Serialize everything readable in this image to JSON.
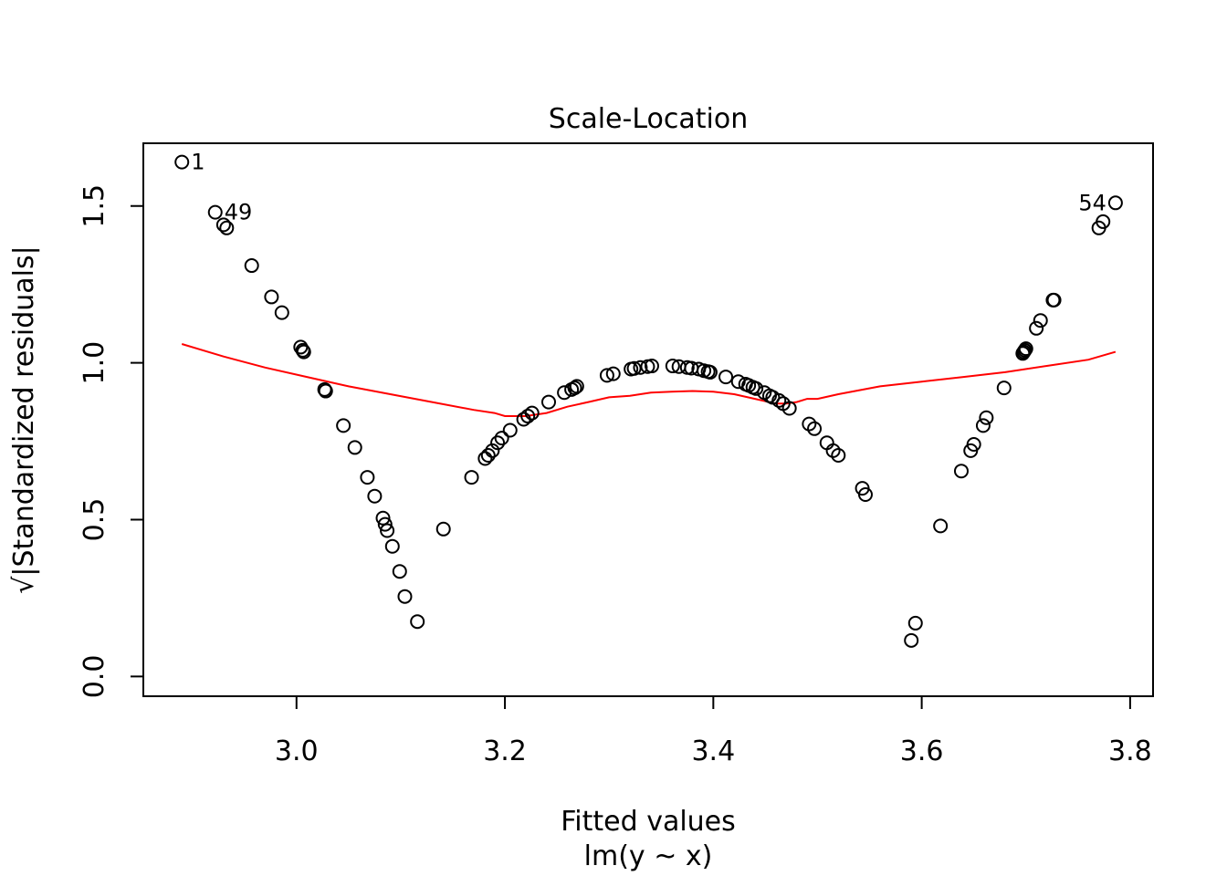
{
  "chart_data": {
    "type": "scatter",
    "title": "Scale-Location",
    "xlabel": "Fitted values",
    "sublabel": "lm(y ~ x)",
    "ylabel": "√|Standardized residuals|",
    "xlim": [
      2.853,
      3.822
    ],
    "ylim": [
      -0.063,
      1.7
    ],
    "xticks": [
      3.0,
      3.2,
      3.4,
      3.6,
      3.8
    ],
    "xtick_labels": [
      "3.0",
      "3.2",
      "3.4",
      "3.6",
      "3.8"
    ],
    "yticks": [
      0.0,
      0.5,
      1.0,
      1.5
    ],
    "ytick_labels": [
      "0.0",
      "0.5",
      "1.0",
      "1.5"
    ],
    "grid": false,
    "points": {
      "x": [
        2.89,
        2.922,
        2.93,
        2.933,
        2.957,
        2.976,
        2.986,
        3.004,
        3.006,
        3.007,
        3.027,
        3.028,
        3.045,
        3.056,
        3.068,
        3.075,
        3.083,
        3.085,
        3.087,
        3.092,
        3.099,
        3.104,
        3.116,
        3.141,
        3.168,
        3.181,
        3.184,
        3.188,
        3.193,
        3.197,
        3.205,
        3.218,
        3.222,
        3.226,
        3.242,
        3.257,
        3.264,
        3.267,
        3.269,
        3.298,
        3.304,
        3.321,
        3.324,
        3.33,
        3.337,
        3.341,
        3.361,
        3.367,
        3.375,
        3.379,
        3.386,
        3.391,
        3.395,
        3.397,
        3.412,
        3.424,
        3.431,
        3.434,
        3.438,
        3.441,
        3.449,
        3.454,
        3.457,
        3.463,
        3.467,
        3.473,
        3.492,
        3.497,
        3.509,
        3.515,
        3.52,
        3.543,
        3.546,
        3.59,
        3.594,
        3.618,
        3.638,
        3.647,
        3.65,
        3.659,
        3.662,
        3.679,
        3.697,
        3.698,
        3.699,
        3.7,
        3.71,
        3.714,
        3.726,
        3.727,
        3.77,
        3.774,
        3.786
      ],
      "y": [
        1.64,
        1.48,
        1.44,
        1.43,
        1.31,
        1.21,
        1.16,
        1.05,
        1.04,
        1.035,
        0.915,
        0.91,
        0.8,
        0.73,
        0.635,
        0.575,
        0.505,
        0.485,
        0.465,
        0.415,
        0.335,
        0.255,
        0.175,
        0.47,
        0.635,
        0.695,
        0.705,
        0.72,
        0.745,
        0.76,
        0.785,
        0.82,
        0.83,
        0.84,
        0.875,
        0.905,
        0.915,
        0.92,
        0.925,
        0.96,
        0.965,
        0.98,
        0.982,
        0.985,
        0.988,
        0.99,
        0.99,
        0.988,
        0.985,
        0.983,
        0.98,
        0.975,
        0.972,
        0.97,
        0.955,
        0.94,
        0.932,
        0.928,
        0.922,
        0.918,
        0.905,
        0.895,
        0.89,
        0.88,
        0.87,
        0.855,
        0.805,
        0.79,
        0.745,
        0.72,
        0.705,
        0.6,
        0.58,
        0.115,
        0.17,
        0.48,
        0.655,
        0.72,
        0.74,
        0.8,
        0.825,
        0.92,
        1.03,
        1.035,
        1.04,
        1.045,
        1.11,
        1.135,
        1.2,
        1.2,
        1.43,
        1.45,
        1.51
      ]
    },
    "smooth_line": {
      "color": "#ff0000",
      "x": [
        2.89,
        2.93,
        2.97,
        3.01,
        3.05,
        3.09,
        3.13,
        3.17,
        3.19,
        3.2,
        3.21,
        3.22,
        3.24,
        3.26,
        3.28,
        3.3,
        3.32,
        3.34,
        3.36,
        3.38,
        3.4,
        3.42,
        3.44,
        3.46,
        3.47,
        3.48,
        3.49,
        3.5,
        3.52,
        3.56,
        3.6,
        3.64,
        3.68,
        3.72,
        3.76,
        3.786
      ],
      "y": [
        1.06,
        1.02,
        0.985,
        0.955,
        0.925,
        0.9,
        0.875,
        0.85,
        0.84,
        0.83,
        0.83,
        0.83,
        0.84,
        0.86,
        0.875,
        0.89,
        0.895,
        0.905,
        0.908,
        0.91,
        0.908,
        0.9,
        0.885,
        0.87,
        0.87,
        0.875,
        0.885,
        0.885,
        0.9,
        0.925,
        0.94,
        0.955,
        0.97,
        0.99,
        1.01,
        1.035
      ]
    },
    "annotations": [
      {
        "label": "1",
        "x": 2.89,
        "y": 1.64,
        "anchor": "start"
      },
      {
        "label": "49",
        "x": 2.922,
        "y": 1.48,
        "anchor": "start"
      },
      {
        "label": "54",
        "x": 3.786,
        "y": 1.51,
        "anchor": "end"
      }
    ]
  }
}
